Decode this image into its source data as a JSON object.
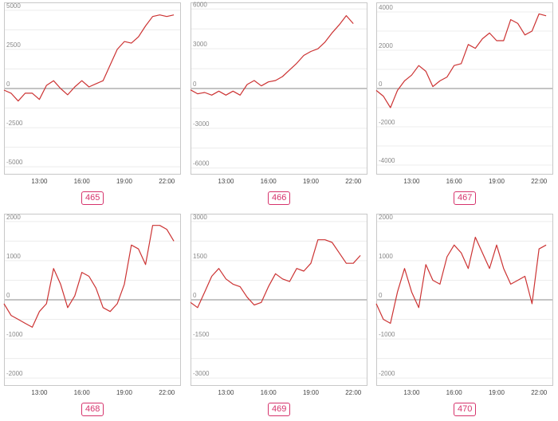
{
  "style": {
    "line_color": "#cc3333",
    "badge_color": "#d6336c",
    "frame_color": "#c8c8c8"
  },
  "chart_data": [
    {
      "type": "line",
      "title": "465",
      "x_ticks": [
        "13:00",
        "16:00",
        "19:00",
        "22:00"
      ],
      "ylim": [
        -5500,
        5500
      ],
      "y_ticks": [
        5000,
        2500,
        0,
        -2500,
        -5000
      ],
      "x": [
        10.5,
        11,
        11.5,
        12,
        12.5,
        13,
        13.5,
        14,
        14.5,
        15,
        15.5,
        16,
        16.5,
        17,
        17.5,
        18,
        18.5,
        19,
        19.5,
        20,
        20.5,
        21,
        21.5,
        22,
        22.5
      ],
      "values": [
        -100,
        -300,
        -800,
        -300,
        -300,
        -700,
        200,
        500,
        0,
        -400,
        100,
        500,
        100,
        300,
        500,
        1500,
        2500,
        3000,
        2900,
        3300,
        4000,
        4600,
        4700,
        4600,
        4700
      ]
    },
    {
      "type": "line",
      "title": "466",
      "x_ticks": [
        "13:00",
        "16:00",
        "19:00",
        "22:00"
      ],
      "ylim": [
        -6500,
        6500
      ],
      "y_ticks": [
        6000,
        3000,
        0,
        -3000,
        -6000
      ],
      "x": [
        10.5,
        11,
        11.5,
        12,
        12.5,
        13,
        13.5,
        14,
        14.5,
        15,
        15.5,
        16,
        16.5,
        17,
        17.5,
        18,
        18.5,
        19,
        19.5,
        20,
        20.5,
        21,
        21.5,
        22
      ],
      "values": [
        -100,
        -400,
        -300,
        -500,
        -200,
        -500,
        -200,
        -500,
        300,
        600,
        200,
        500,
        600,
        900,
        1400,
        1900,
        2500,
        2800,
        3000,
        3500,
        4200,
        4800,
        5500,
        4900
      ]
    },
    {
      "type": "line",
      "title": "467",
      "x_ticks": [
        "13:00",
        "16:00",
        "19:00",
        "22:00"
      ],
      "ylim": [
        -4500,
        4500
      ],
      "y_ticks": [
        4000,
        2000,
        0,
        -2000,
        -4000
      ],
      "x": [
        10.5,
        11,
        11.5,
        12,
        12.5,
        13,
        13.5,
        14,
        14.5,
        15,
        15.5,
        16,
        16.5,
        17,
        17.5,
        18,
        18.5,
        19,
        19.5,
        20,
        20.5,
        21,
        21.5,
        22,
        22.5
      ],
      "values": [
        -100,
        -400,
        -1000,
        -100,
        400,
        700,
        1200,
        900,
        100,
        400,
        600,
        1200,
        1300,
        2300,
        2100,
        2600,
        2900,
        2500,
        2500,
        3600,
        3400,
        2800,
        3000,
        3900,
        3800
      ]
    },
    {
      "type": "line",
      "title": "468",
      "x_ticks": [
        "13:00",
        "16:00",
        "19:00",
        "22:00"
      ],
      "ylim": [
        -2200,
        2200
      ],
      "y_ticks": [
        2000,
        1000,
        0,
        -1000,
        -2000
      ],
      "x": [
        10.5,
        11,
        11.5,
        12,
        12.5,
        13,
        13.5,
        14,
        14.5,
        15,
        15.5,
        16,
        16.5,
        17,
        17.5,
        18,
        18.5,
        19,
        19.5,
        20,
        20.5,
        21,
        21.5,
        22,
        22.5
      ],
      "values": [
        -100,
        -400,
        -500,
        -600,
        -700,
        -300,
        -100,
        800,
        400,
        -200,
        100,
        700,
        600,
        300,
        -200,
        -300,
        -100,
        400,
        1400,
        1300,
        900,
        1900,
        1900,
        1800,
        1500
      ]
    },
    {
      "type": "line",
      "title": "469",
      "x_ticks": [
        "13:00",
        "16:00",
        "19:00",
        "22:00"
      ],
      "ylim": [
        -3300,
        3300
      ],
      "y_ticks": [
        3000,
        1500,
        0,
        -1500,
        -3000
      ],
      "x": [
        10.5,
        11,
        11.5,
        12,
        12.5,
        13,
        13.5,
        14,
        14.5,
        15,
        15.5,
        16,
        16.5,
        17,
        17.5,
        18,
        18.5,
        19,
        19.5,
        20,
        20.5,
        21,
        21.5,
        22,
        22.5
      ],
      "values": [
        -100,
        -300,
        300,
        900,
        1200,
        800,
        600,
        500,
        100,
        -200,
        -100,
        500,
        1000,
        800,
        700,
        1200,
        1100,
        1400,
        2300,
        2300,
        2200,
        1800,
        1400,
        1400,
        1700
      ]
    },
    {
      "type": "line",
      "title": "470",
      "x_ticks": [
        "13:00",
        "16:00",
        "19:00",
        "22:00"
      ],
      "ylim": [
        -2200,
        2200
      ],
      "y_ticks": [
        2000,
        1000,
        0,
        -1000,
        -2000
      ],
      "x": [
        10.5,
        11,
        11.5,
        12,
        12.5,
        13,
        13.5,
        14,
        14.5,
        15,
        15.5,
        16,
        16.5,
        17,
        17.5,
        18,
        18.5,
        19,
        19.5,
        20,
        20.5,
        21,
        21.5,
        22,
        22.5
      ],
      "values": [
        -100,
        -500,
        -600,
        200,
        800,
        200,
        -200,
        900,
        500,
        400,
        1100,
        1400,
        1200,
        800,
        1600,
        1200,
        800,
        1400,
        800,
        400,
        500,
        600,
        -100,
        1300,
        1400
      ]
    }
  ]
}
